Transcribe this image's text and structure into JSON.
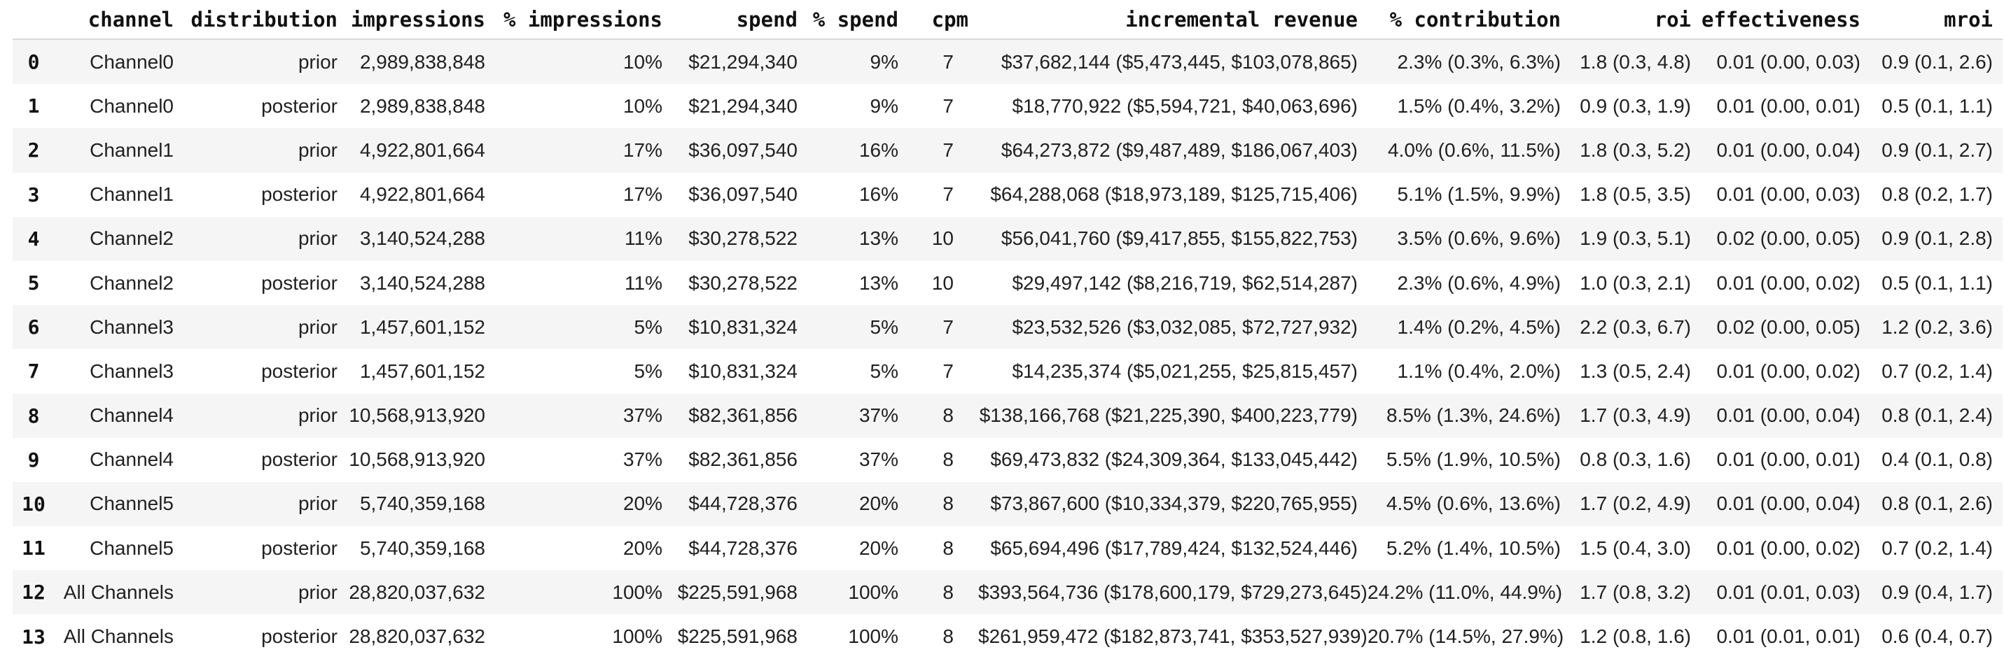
{
  "chart_data": {
    "type": "table",
    "columns": [
      "",
      "channel",
      "distribution",
      "impressions",
      "% impressions",
      "spend",
      "% spend",
      "cpm",
      "incremental revenue",
      "% contribution",
      "roi",
      "effectiveness",
      "mroi"
    ],
    "rows": [
      [
        "0",
        "Channel0",
        "prior",
        "2,989,838,848",
        "10%",
        "$21,294,340",
        "9%",
        "7",
        "$37,682,144 ($5,473,445, $103,078,865)",
        "2.3% (0.3%, 6.3%)",
        "1.8 (0.3, 4.8)",
        "0.01 (0.00, 0.03)",
        "0.9 (0.1, 2.6)"
      ],
      [
        "1",
        "Channel0",
        "posterior",
        "2,989,838,848",
        "10%",
        "$21,294,340",
        "9%",
        "7",
        "$18,770,922 ($5,594,721, $40,063,696)",
        "1.5% (0.4%, 3.2%)",
        "0.9 (0.3, 1.9)",
        "0.01 (0.00, 0.01)",
        "0.5 (0.1, 1.1)"
      ],
      [
        "2",
        "Channel1",
        "prior",
        "4,922,801,664",
        "17%",
        "$36,097,540",
        "16%",
        "7",
        "$64,273,872 ($9,487,489, $186,067,403)",
        "4.0% (0.6%, 11.5%)",
        "1.8 (0.3, 5.2)",
        "0.01 (0.00, 0.04)",
        "0.9 (0.1, 2.7)"
      ],
      [
        "3",
        "Channel1",
        "posterior",
        "4,922,801,664",
        "17%",
        "$36,097,540",
        "16%",
        "7",
        "$64,288,068 ($18,973,189, $125,715,406)",
        "5.1% (1.5%, 9.9%)",
        "1.8 (0.5, 3.5)",
        "0.01 (0.00, 0.03)",
        "0.8 (0.2, 1.7)"
      ],
      [
        "4",
        "Channel2",
        "prior",
        "3,140,524,288",
        "11%",
        "$30,278,522",
        "13%",
        "10",
        "$56,041,760 ($9,417,855, $155,822,753)",
        "3.5% (0.6%, 9.6%)",
        "1.9 (0.3, 5.1)",
        "0.02 (0.00, 0.05)",
        "0.9 (0.1, 2.8)"
      ],
      [
        "5",
        "Channel2",
        "posterior",
        "3,140,524,288",
        "11%",
        "$30,278,522",
        "13%",
        "10",
        "$29,497,142 ($8,216,719, $62,514,287)",
        "2.3% (0.6%, 4.9%)",
        "1.0 (0.3, 2.1)",
        "0.01 (0.00, 0.02)",
        "0.5 (0.1, 1.1)"
      ],
      [
        "6",
        "Channel3",
        "prior",
        "1,457,601,152",
        "5%",
        "$10,831,324",
        "5%",
        "7",
        "$23,532,526 ($3,032,085, $72,727,932)",
        "1.4% (0.2%, 4.5%)",
        "2.2 (0.3, 6.7)",
        "0.02 (0.00, 0.05)",
        "1.2 (0.2, 3.6)"
      ],
      [
        "7",
        "Channel3",
        "posterior",
        "1,457,601,152",
        "5%",
        "$10,831,324",
        "5%",
        "7",
        "$14,235,374 ($5,021,255, $25,815,457)",
        "1.1% (0.4%, 2.0%)",
        "1.3 (0.5, 2.4)",
        "0.01 (0.00, 0.02)",
        "0.7 (0.2, 1.4)"
      ],
      [
        "8",
        "Channel4",
        "prior",
        "10,568,913,920",
        "37%",
        "$82,361,856",
        "37%",
        "8",
        "$138,166,768 ($21,225,390, $400,223,779)",
        "8.5% (1.3%, 24.6%)",
        "1.7 (0.3, 4.9)",
        "0.01 (0.00, 0.04)",
        "0.8 (0.1, 2.4)"
      ],
      [
        "9",
        "Channel4",
        "posterior",
        "10,568,913,920",
        "37%",
        "$82,361,856",
        "37%",
        "8",
        "$69,473,832 ($24,309,364, $133,045,442)",
        "5.5% (1.9%, 10.5%)",
        "0.8 (0.3, 1.6)",
        "0.01 (0.00, 0.01)",
        "0.4 (0.1, 0.8)"
      ],
      [
        "10",
        "Channel5",
        "prior",
        "5,740,359,168",
        "20%",
        "$44,728,376",
        "20%",
        "8",
        "$73,867,600 ($10,334,379, $220,765,955)",
        "4.5% (0.6%, 13.6%)",
        "1.7 (0.2, 4.9)",
        "0.01 (0.00, 0.04)",
        "0.8 (0.1, 2.6)"
      ],
      [
        "11",
        "Channel5",
        "posterior",
        "5,740,359,168",
        "20%",
        "$44,728,376",
        "20%",
        "8",
        "$65,694,496 ($17,789,424, $132,524,446)",
        "5.2% (1.4%, 10.5%)",
        "1.5 (0.4, 3.0)",
        "0.01 (0.00, 0.02)",
        "0.7 (0.2, 1.4)"
      ],
      [
        "12",
        "All Channels",
        "prior",
        "28,820,037,632",
        "100%",
        "$225,591,968",
        "100%",
        "8",
        "$393,564,736 ($178,600,179, $729,273,645)",
        "24.2% (11.0%, 44.9%)",
        "1.7 (0.8, 3.2)",
        "0.01 (0.01, 0.03)",
        "0.9 (0.4, 1.7)"
      ],
      [
        "13",
        "All Channels",
        "posterior",
        "28,820,037,632",
        "100%",
        "$225,591,968",
        "100%",
        "8",
        "$261,959,472 ($182,873,741, $353,527,939)",
        "20.7% (14.5%, 27.9%)",
        "1.2 (0.8, 1.6)",
        "0.01 (0.01, 0.01)",
        "0.6 (0.4, 0.7)"
      ]
    ],
    "layout_hints": {
      "striped_rows": true,
      "stripe_color": "#f5f5f5",
      "header_border_color": "#d9d9d9",
      "text_color": "#212121",
      "header_style": "bold-monospace",
      "alignment": "right (index column centered, channel column right-aligned)"
    }
  },
  "colors": {
    "background": "#ffffff",
    "stripe": "#f5f5f5",
    "header_border": "#d9d9d9",
    "text": "#212121",
    "header_text": "#111111"
  }
}
